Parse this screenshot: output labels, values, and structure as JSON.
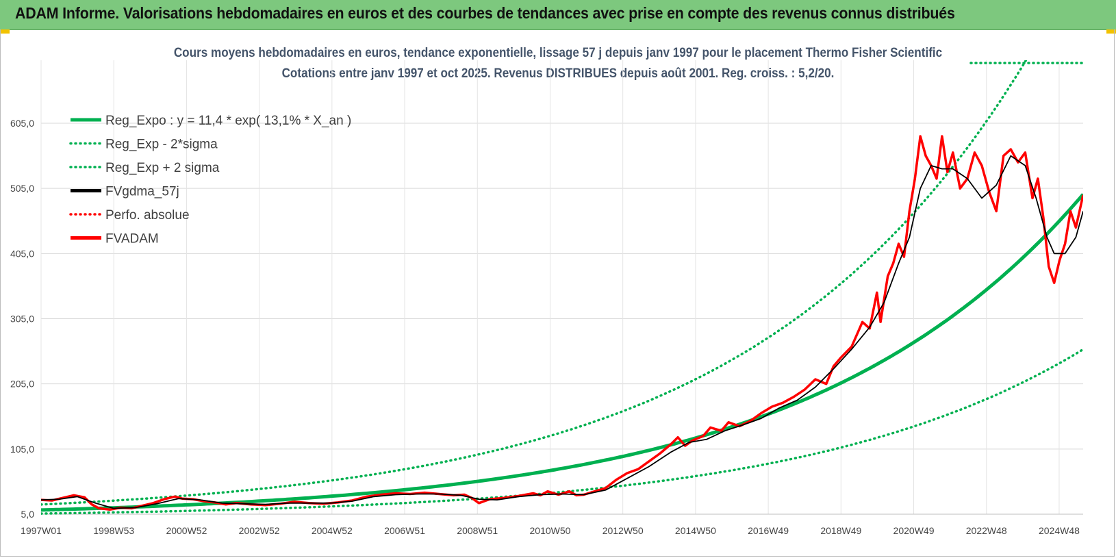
{
  "banner": {
    "title": "ADAM Informe. Valorisations hebdomadaires en euros et des courbes de tendances avec prise en compte des revenus connus distribués"
  },
  "colors": {
    "banner": "#7dc87e",
    "trend": "#00b050",
    "smooth": "#000000",
    "price": "#ff0000",
    "accent": "#f2c200"
  },
  "chart_data": {
    "type": "line",
    "title_line1": "Cours moyens hebdomadaires en euros, tendance exponentielle, lissage 57 j depuis janv 1997 pour le placement Thermo Fisher Scientific",
    "title_line2": "Cotations entre janv 1997 et oct 2025. Revenus DISTRIBUES depuis août 2001. Reg. croiss. : 5,2/20.",
    "ylim": [
      5,
      665
    ],
    "y_ticks": [
      "605,0",
      "505,0",
      "405,0",
      "305,0",
      "205,0",
      "105,0",
      "5,0"
    ],
    "x_ticks": [
      "1997W01",
      "1998W53",
      "2000W52",
      "2002W52",
      "2004W52",
      "2006W51",
      "2008W51",
      "2010W50",
      "2012W50",
      "2014W50",
      "2016W49",
      "2018W49",
      "2020W49",
      "2022W48",
      "2024W48"
    ],
    "x_range_years": [
      1997.0,
      2025.8
    ],
    "grid": true,
    "legend_position": "top-left",
    "legend": [
      {
        "label": "Reg_Expo : y = 11,4 * exp( 13,1% *  X_an )",
        "style": "solid",
        "color": "#00b050"
      },
      {
        "label": "Reg_Exp - 2*sigma",
        "style": "dotted",
        "color": "#00b050"
      },
      {
        "label": "Reg_Exp + 2 sigma",
        "style": "dotted",
        "color": "#00b050"
      },
      {
        "label": "FVgdma_57j",
        "style": "solid",
        "color": "#000000"
      },
      {
        "label": "Perfo. absolue",
        "style": "dotted",
        "color": "#ff0000"
      },
      {
        "label": "FVADAM",
        "style": "solid",
        "color": "#ff0000"
      }
    ],
    "regression": {
      "a": 11.4,
      "b": 0.131,
      "minus_2sigma_factor": 0.52,
      "plus_2sigma_factor": 1.74
    },
    "series": [
      {
        "name": "FVADAM",
        "x": [
          1997.0,
          1997.3,
          1997.6,
          1997.9,
          1998.2,
          1998.4,
          1998.6,
          1998.9,
          1999.2,
          1999.5,
          1999.8,
          2000.1,
          2000.4,
          2000.7,
          2000.9,
          2001.2,
          2001.5,
          2001.8,
          2002.1,
          2002.4,
          2002.8,
          2003.2,
          2003.6,
          2004.0,
          2004.4,
          2004.8,
          2005.2,
          2005.6,
          2006.0,
          2006.4,
          2006.8,
          2007.2,
          2007.6,
          2008.0,
          2008.4,
          2008.7,
          2008.9,
          2009.1,
          2009.4,
          2009.8,
          2010.2,
          2010.6,
          2010.8,
          2011.0,
          2011.3,
          2011.6,
          2011.8,
          2012.0,
          2012.3,
          2012.6,
          2012.9,
          2013.2,
          2013.5,
          2013.8,
          2014.1,
          2014.4,
          2014.6,
          2014.8,
          2015.0,
          2015.3,
          2015.5,
          2015.8,
          2016.0,
          2016.3,
          2016.6,
          2016.9,
          2017.2,
          2017.5,
          2017.8,
          2018.1,
          2018.4,
          2018.7,
          2018.9,
          2019.1,
          2019.4,
          2019.7,
          2019.9,
          2020.1,
          2020.2,
          2020.4,
          2020.55,
          2020.7,
          2020.85,
          2021.0,
          2021.15,
          2021.3,
          2021.45,
          2021.6,
          2021.75,
          2021.9,
          2022.05,
          2022.2,
          2022.4,
          2022.6,
          2022.8,
          2023.0,
          2023.2,
          2023.4,
          2023.6,
          2023.8,
          2024.0,
          2024.2,
          2024.4,
          2024.55,
          2024.7,
          2024.85,
          2025.0,
          2025.15,
          2025.3,
          2025.45,
          2025.6,
          2025.8
        ],
        "values": [
          27,
          26,
          30,
          34,
          31,
          20,
          14,
          12,
          15,
          14,
          18,
          22,
          28,
          32,
          29,
          28,
          25,
          23,
          20,
          22,
          20,
          19,
          21,
          24,
          22,
          21,
          23,
          26,
          32,
          35,
          37,
          36,
          38,
          36,
          34,
          35,
          30,
          22,
          28,
          30,
          33,
          37,
          34,
          40,
          35,
          40,
          34,
          35,
          40,
          45,
          58,
          68,
          74,
          86,
          98,
          112,
          123,
          110,
          118,
          125,
          138,
          133,
          146,
          140,
          148,
          160,
          170,
          176,
          185,
          196,
          212,
          205,
          232,
          245,
          262,
          300,
          290,
          345,
          300,
          370,
          390,
          420,
          400,
          470,
          520,
          585,
          555,
          540,
          520,
          585,
          530,
          560,
          505,
          520,
          560,
          540,
          500,
          470,
          555,
          565,
          545,
          560,
          490,
          520,
          460,
          385,
          360,
          395,
          420,
          470,
          445,
          495
        ]
      },
      {
        "name": "FVgdma_57j",
        "x": [
          1997.0,
          1997.5,
          1998.0,
          1998.5,
          1999.0,
          1999.6,
          2000.2,
          2000.8,
          2001.4,
          2002.0,
          2002.6,
          2003.2,
          2003.8,
          2004.4,
          2005.0,
          2005.6,
          2006.2,
          2006.8,
          2007.4,
          2008.0,
          2008.6,
          2009.1,
          2009.6,
          2010.2,
          2010.8,
          2011.4,
          2012.0,
          2012.6,
          2013.2,
          2013.8,
          2014.4,
          2014.9,
          2015.4,
          2015.9,
          2016.4,
          2016.9,
          2017.4,
          2017.9,
          2018.4,
          2018.9,
          2019.4,
          2019.9,
          2020.3,
          2020.7,
          2021.0,
          2021.3,
          2021.6,
          2021.9,
          2022.2,
          2022.6,
          2023.0,
          2023.4,
          2023.8,
          2024.2,
          2024.5,
          2024.8,
          2025.0,
          2025.3,
          2025.6,
          2025.8
        ],
        "values": [
          27,
          28,
          32,
          22,
          14,
          15,
          21,
          29,
          27,
          22,
          21,
          20,
          22,
          22,
          22,
          25,
          32,
          35,
          36,
          36,
          34,
          28,
          27,
          32,
          35,
          36,
          35,
          42,
          60,
          78,
          100,
          115,
          120,
          133,
          142,
          152,
          168,
          180,
          200,
          228,
          258,
          292,
          330,
          390,
          430,
          505,
          540,
          535,
          535,
          520,
          490,
          510,
          555,
          540,
          490,
          430,
          405,
          405,
          430,
          470
        ]
      }
    ]
  }
}
